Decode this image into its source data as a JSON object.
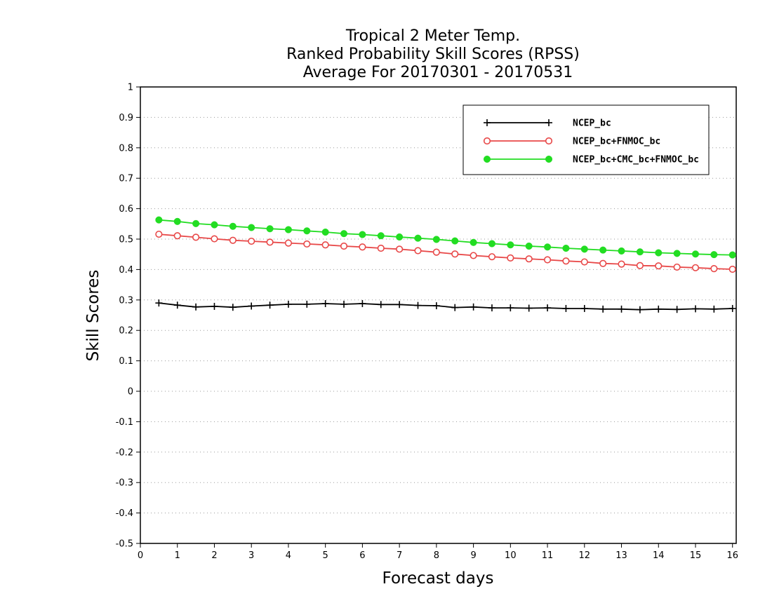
{
  "chart_data": {
    "type": "line",
    "title": [
      "Tropical 2 Meter Temp.",
      "Ranked Probability Skill Scores (RPSS)",
      "Average For 20170301 - 20170531"
    ],
    "xlabel": "Forecast days",
    "ylabel": "Skill Scores",
    "xlim": [
      0,
      16.1
    ],
    "ylim": [
      -0.5,
      1
    ],
    "xticks": [
      "0",
      "1",
      "2",
      "3",
      "4",
      "5",
      "6",
      "7",
      "8",
      "9",
      "10",
      "11",
      "12",
      "13",
      "14",
      "15",
      "16"
    ],
    "yticks": [
      "1",
      "0.9",
      "0.8",
      "0.7",
      "0.6",
      "0.5",
      "0.4",
      "0.3",
      "0.2",
      "0.1",
      "0",
      "-0.1",
      "-0.2",
      "-0.3",
      "-0.4",
      "-0.5"
    ],
    "grid": "horizontal dotted",
    "legend_position": "top-right",
    "x": [
      0.5,
      1.0,
      1.5,
      2.0,
      2.5,
      3.0,
      3.5,
      4.0,
      4.5,
      5.0,
      5.5,
      6.0,
      6.5,
      7.0,
      7.5,
      8.0,
      8.5,
      9.0,
      9.5,
      10.0,
      10.5,
      11.0,
      11.5,
      12.0,
      12.5,
      13.0,
      13.5,
      14.0,
      14.5,
      15.0,
      15.5,
      16.0
    ],
    "series": [
      {
        "name": "NCEP_bc",
        "color": "#000000",
        "marker": "plus",
        "values": [
          0.29,
          0.283,
          0.277,
          0.279,
          0.276,
          0.28,
          0.283,
          0.286,
          0.286,
          0.288,
          0.286,
          0.288,
          0.285,
          0.285,
          0.282,
          0.281,
          0.275,
          0.277,
          0.274,
          0.274,
          0.273,
          0.274,
          0.272,
          0.272,
          0.27,
          0.27,
          0.268,
          0.27,
          0.269,
          0.271,
          0.27,
          0.272
        ]
      },
      {
        "name": "NCEP_bc+FNMOC_bc",
        "color": "#e84848",
        "marker": "open-circle",
        "values": [
          0.516,
          0.511,
          0.506,
          0.501,
          0.496,
          0.493,
          0.49,
          0.487,
          0.484,
          0.481,
          0.477,
          0.474,
          0.47,
          0.467,
          0.462,
          0.457,
          0.451,
          0.446,
          0.442,
          0.438,
          0.435,
          0.432,
          0.428,
          0.425,
          0.42,
          0.418,
          0.413,
          0.412,
          0.408,
          0.406,
          0.403,
          0.401
        ]
      },
      {
        "name": "NCEP_bc+CMC_bc+FNMOC_bc",
        "color": "#22dd22",
        "marker": "filled-circle",
        "values": [
          0.563,
          0.558,
          0.551,
          0.547,
          0.542,
          0.538,
          0.534,
          0.531,
          0.527,
          0.523,
          0.518,
          0.515,
          0.511,
          0.507,
          0.503,
          0.499,
          0.494,
          0.489,
          0.485,
          0.481,
          0.477,
          0.474,
          0.47,
          0.467,
          0.464,
          0.461,
          0.458,
          0.455,
          0.453,
          0.451,
          0.449,
          0.448
        ]
      }
    ]
  }
}
